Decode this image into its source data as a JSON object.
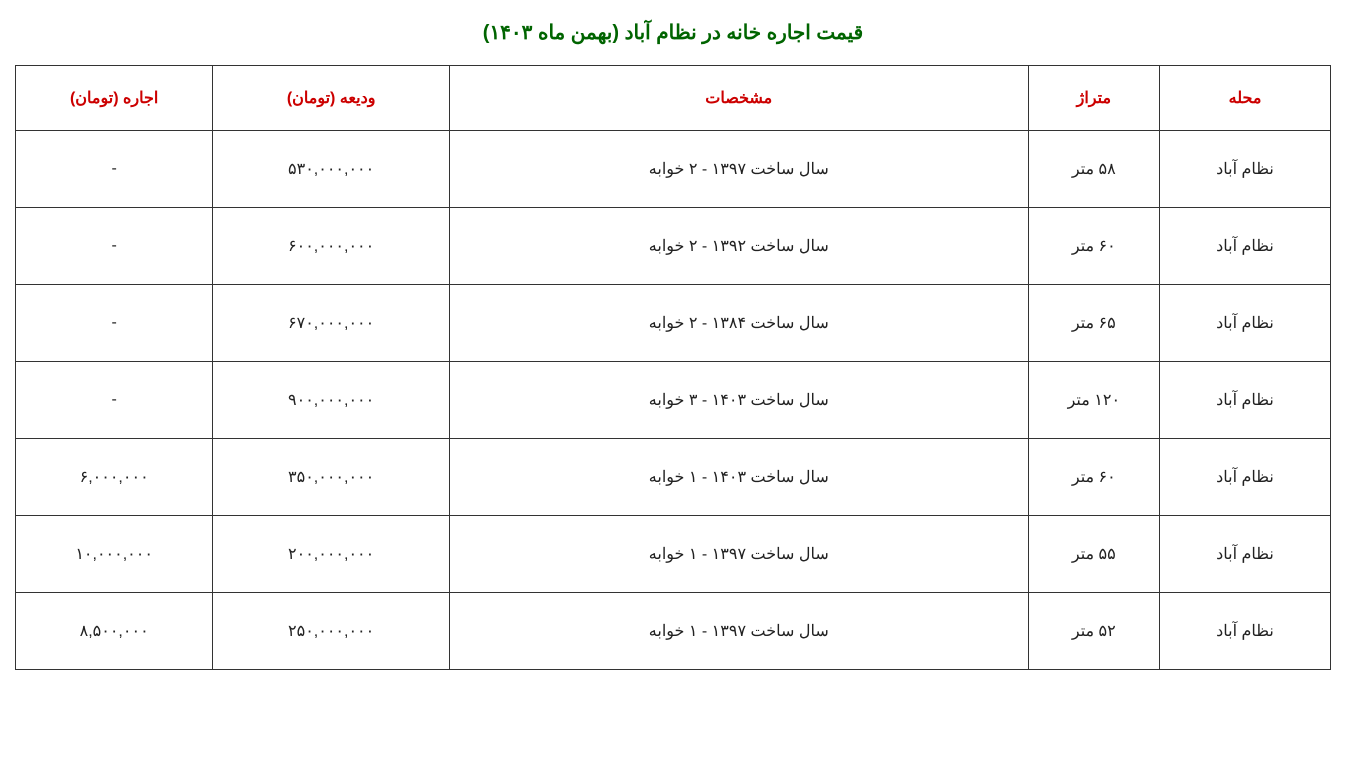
{
  "title": "قیمت اجاره خانه در نظام آباد (بهمن ماه ۱۴۰۳)",
  "table": {
    "columns": [
      "محله",
      "متراژ",
      "مشخصات",
      "ودیعه (تومان)",
      "اجاره (تومان)"
    ],
    "rows": [
      [
        "نظام آباد",
        "۵۸ متر",
        "سال ساخت ۱۳۹۷ - ۲ خوابه",
        "۵۳۰,۰۰۰,۰۰۰",
        "-"
      ],
      [
        "نظام آباد",
        "۶۰ متر",
        "سال ساخت ۱۳۹۲ - ۲ خوابه",
        "۶۰۰,۰۰۰,۰۰۰",
        "-"
      ],
      [
        "نظام آباد",
        "۶۵ متر",
        "سال ساخت ۱۳۸۴ - ۲ خوابه",
        "۶۷۰,۰۰۰,۰۰۰",
        "-"
      ],
      [
        "نظام آباد",
        "۱۲۰ متر",
        "سال ساخت ۱۴۰۳ - ۳ خوابه",
        "۹۰۰,۰۰۰,۰۰۰",
        "-"
      ],
      [
        "نظام آباد",
        "۶۰ متر",
        "سال ساخت ۱۴۰۳ - ۱ خوابه",
        "۳۵۰,۰۰۰,۰۰۰",
        "۶,۰۰۰,۰۰۰"
      ],
      [
        "نظام آباد",
        "۵۵ متر",
        "سال ساخت ۱۳۹۷ - ۱ خوابه",
        "۲۰۰,۰۰۰,۰۰۰",
        "۱۰,۰۰۰,۰۰۰"
      ],
      [
        "نظام آباد",
        "۵۲ متر",
        "سال ساخت ۱۳۹۷ - ۱ خوابه",
        "۲۵۰,۰۰۰,۰۰۰",
        "۸,۵۰۰,۰۰۰"
      ]
    ],
    "title_color": "#006400",
    "header_color": "#cc0000",
    "border_color": "#333333",
    "background_color": "#ffffff",
    "text_color": "#222222",
    "title_fontsize": 20,
    "header_fontsize": 16,
    "cell_fontsize": 16,
    "column_widths_pct": [
      13,
      10,
      44,
      18,
      15
    ],
    "column_alignment": [
      "center",
      "center",
      "center",
      "center",
      "center"
    ]
  }
}
